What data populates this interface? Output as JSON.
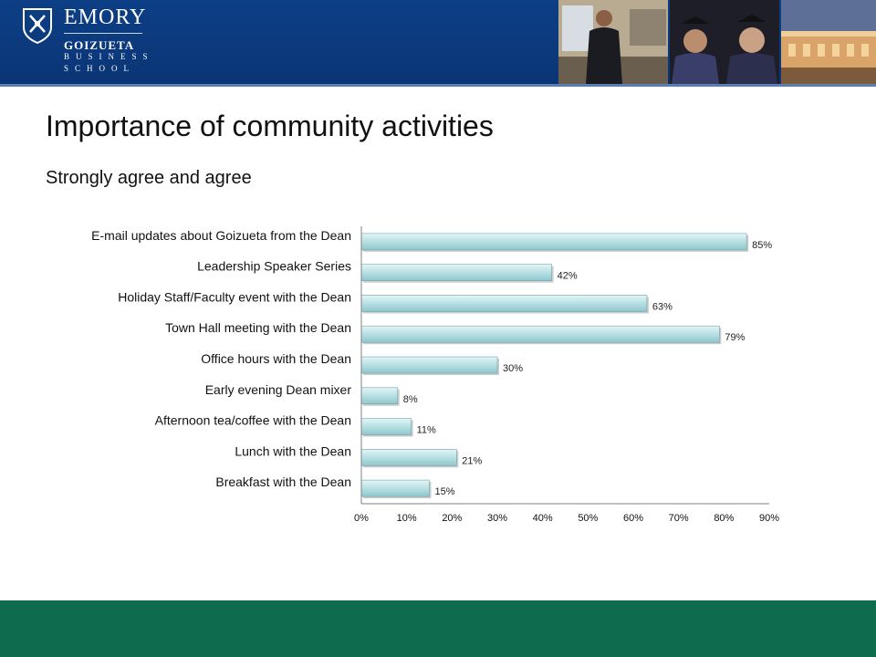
{
  "header": {
    "logo_text": "EMORY",
    "logo_school": "GOIZUETA",
    "logo_line2": "BUSINESS",
    "logo_line3": "SCHOOL",
    "bg_color": "#0d3f86",
    "photos": [
      "presenter-photo",
      "graduates-photo",
      "building-photo"
    ]
  },
  "slide": {
    "title": "Importance of community activities",
    "subtitle": "Strongly agree and agree"
  },
  "footer": {
    "color": "#0e6b4d"
  },
  "chart_data": {
    "type": "bar",
    "orientation": "horizontal",
    "categories": [
      "E-mail updates about Goizueta from the Dean",
      "Leadership Speaker Series",
      "Holiday Staff/Faculty event with the Dean",
      "Town Hall meeting with the Dean",
      "Office hours with the Dean",
      "Early evening Dean mixer",
      "Afternoon tea/coffee with the Dean",
      "Lunch with the Dean",
      "Breakfast with the Dean"
    ],
    "values": [
      85,
      42,
      63,
      79,
      30,
      8,
      11,
      21,
      15
    ],
    "data_labels": [
      "85%",
      "42%",
      "63%",
      "79%",
      "30%",
      "8%",
      "11%",
      "21%",
      "15%"
    ],
    "xlim": [
      0,
      90
    ],
    "xticks": [
      "0%",
      "10%",
      "20%",
      "30%",
      "40%",
      "50%",
      "60%",
      "70%",
      "80%",
      "90%"
    ],
    "bar_color": "#b7e0e4",
    "grid": false
  }
}
